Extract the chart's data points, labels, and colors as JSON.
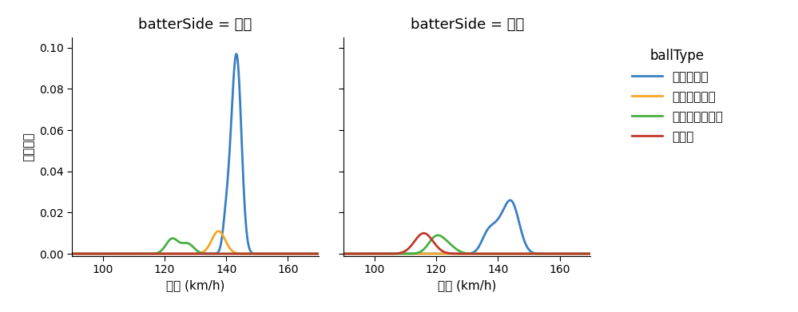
{
  "title_left": "batterSide = 左打",
  "title_right": "batterSide = 右打",
  "ylabel": "確率密度",
  "xlabel": "球速 (km/h)",
  "xlim": [
    90,
    170
  ],
  "ylim": [
    -0.001,
    0.105
  ],
  "yticks": [
    0.0,
    0.02,
    0.04,
    0.06,
    0.08,
    0.1
  ],
  "xticks": [
    100,
    120,
    140,
    160
  ],
  "legend_title": "ballType",
  "legend_labels": [
    "ストレート",
    "カットボール",
    "チェンジアップ",
    "カーブ"
  ],
  "colors": {
    "straight": "#3a7fc1",
    "cutter": "#f5a623",
    "changeup": "#4aaf43",
    "curve": "#c0392b"
  },
  "background_color": "#ffffff"
}
